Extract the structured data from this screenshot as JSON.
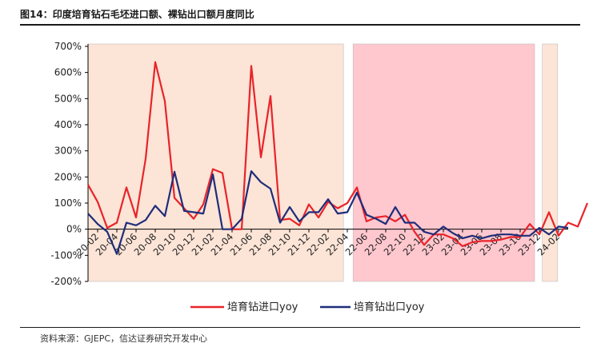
{
  "header": {
    "title": "图14：印度培育钻石毛坯进口额、裸钻出口额月度同比"
  },
  "footer": {
    "source": "资料来源：GJEPC，信达证券研究开发中心"
  },
  "chart_data": {
    "type": "line",
    "title": "",
    "xlabel": "",
    "ylabel": "",
    "ylim": [
      -200,
      700
    ],
    "yticks": [
      "-200%",
      "-100%",
      "0%",
      "100%",
      "200%",
      "300%",
      "400%",
      "500%",
      "600%",
      "700%"
    ],
    "ytick_values": [
      -200,
      -100,
      0,
      100,
      200,
      300,
      400,
      500,
      600,
      700
    ],
    "tick_labels": [
      "20-02",
      "20-04",
      "20-06",
      "20-08",
      "20-10",
      "20-12",
      "21-02",
      "21-04",
      "21-06",
      "21-08",
      "21-10",
      "21-12",
      "22-02",
      "22-04",
      "22-06",
      "22-08",
      "22-10",
      "22-12",
      "23-02",
      "23-04",
      "23-06",
      "23-08",
      "23-10",
      "23-12",
      "24-02"
    ],
    "shaded_regions": [
      {
        "from": 0,
        "to": 26.6,
        "color": "#fce4d6"
      },
      {
        "from": 27.6,
        "to": 46.5,
        "color": "#ffc7ce"
      },
      {
        "from": 47.3,
        "to": 48.9,
        "color": "#fce4d6"
      }
    ],
    "grid": false,
    "legend_position": "bottom",
    "series": [
      {
        "name": "培育钻进口yoy",
        "color": "#e8242a",
        "values": [
          170,
          105,
          5,
          25,
          160,
          45,
          270,
          640,
          490,
          120,
          80,
          40,
          95,
          230,
          215,
          0,
          0,
          625,
          275,
          510,
          35,
          40,
          15,
          95,
          45,
          105,
          80,
          100,
          160,
          30,
          45,
          50,
          30,
          55,
          -10,
          -60,
          -20,
          -20,
          -35,
          -65,
          -50,
          -45,
          -45,
          -40,
          -30,
          -30,
          20,
          -20,
          65,
          -25,
          25,
          10,
          100
        ]
      },
      {
        "name": "培育钻出口yoy",
        "color": "#1f2d7a",
        "values": [
          60,
          20,
          -10,
          -95,
          25,
          15,
          35,
          90,
          50,
          220,
          70,
          65,
          60,
          210,
          0,
          0,
          40,
          222,
          180,
          155,
          25,
          85,
          30,
          65,
          65,
          115,
          60,
          65,
          140,
          55,
          40,
          20,
          85,
          25,
          25,
          -10,
          -20,
          10,
          -15,
          -35,
          -25,
          -35,
          -25,
          -20,
          -20,
          -25,
          -25,
          5,
          -20,
          10,
          5
        ]
      }
    ]
  }
}
